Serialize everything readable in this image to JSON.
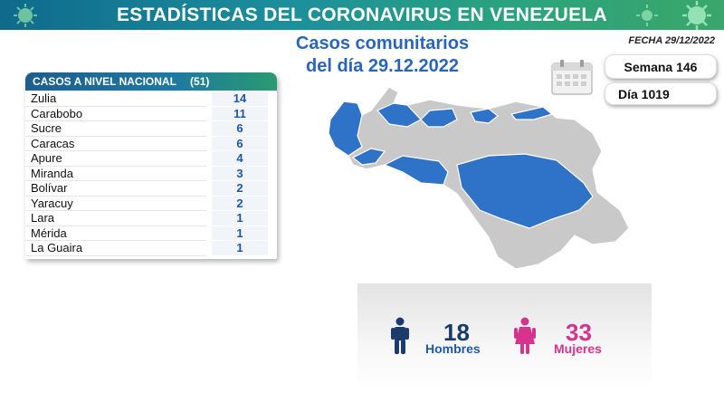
{
  "header": {
    "title": "ESTADÍSTICAS DEL CORONAVIRUS EN VENEZUELA",
    "colors": {
      "from": "#0f6a8c",
      "to": "#3aa66b"
    }
  },
  "subtitle": {
    "line1": "Casos comunitarios",
    "line2": "del día 29.12.2022"
  },
  "fecha": "FECHA 29/12/2022",
  "info": {
    "week": "Semana 146",
    "day": "Día 1019"
  },
  "table": {
    "header_label": "CASOS A NIVEL NACIONAL",
    "header_total": "(51)",
    "rows": [
      {
        "name": "Zulia",
        "value": "14"
      },
      {
        "name": "Carabobo",
        "value": "11"
      },
      {
        "name": "Sucre",
        "value": "6"
      },
      {
        "name": "Caracas",
        "value": "6"
      },
      {
        "name": "Apure",
        "value": "4"
      },
      {
        "name": "Miranda",
        "value": "3"
      },
      {
        "name": "Bolívar",
        "value": "2"
      },
      {
        "name": "Yaracuy",
        "value": "2"
      },
      {
        "name": "Lara",
        "value": "1"
      },
      {
        "name": "Mérida",
        "value": "1"
      },
      {
        "name": "La Guaira",
        "value": "1"
      }
    ]
  },
  "map": {
    "highlight_color": "#2f73c9",
    "base_color": "#c9c9c9"
  },
  "gender": {
    "men_count": "18",
    "men_label": "Hombres",
    "women_count": "33",
    "women_label": "Mujeres",
    "men_color": "#1b3b6b",
    "women_color": "#d6338f"
  },
  "icons": [
    "virus-icon",
    "calendar-icon",
    "man-icon",
    "woman-icon"
  ]
}
